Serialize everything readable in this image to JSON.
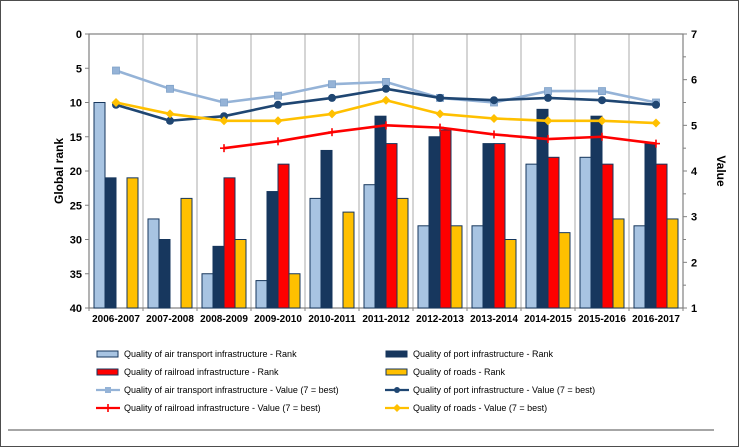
{
  "figure": {
    "background": "#ffffff",
    "border_color": "#4d4d4d",
    "gridline_color": "#ababab",
    "axis_line_color": "#808080",
    "bar_border_color": "#16365c"
  },
  "chart_data": {
    "type": "combo-bar-line",
    "title": "",
    "categories": [
      "2006-2007",
      "2007-2008",
      "2008-2009",
      "2009-2010",
      "2010-2011",
      "2011-2012",
      "2012-2013",
      "2013-2014",
      "2014-2015",
      "2015-2016",
      "2016-2017"
    ],
    "axes": {
      "left": {
        "label": "Global rank",
        "min": 0,
        "max": 40,
        "step": 5,
        "inverted": true,
        "ticks": [
          0,
          5,
          10,
          15,
          20,
          25,
          30,
          35,
          40
        ]
      },
      "right": {
        "label": "Value",
        "min": 1,
        "max": 7,
        "step": 1,
        "ticks": [
          7,
          6,
          5,
          4,
          3,
          2,
          1
        ],
        "minor_step": 0.5
      }
    },
    "gridlines": "vertical",
    "legend_position": "bottom",
    "bar_series": [
      {
        "name": "Quality of air transport infrastructure - Rank",
        "axis": "left",
        "color": "#a8c4e2",
        "values": [
          10,
          27,
          35,
          36,
          24,
          22,
          28,
          28,
          19,
          18,
          28
        ]
      },
      {
        "name": "Quality of port infrastructure - Rank",
        "axis": "left",
        "color": "#17375e",
        "values": [
          21,
          30,
          31,
          23,
          17,
          12,
          15,
          16,
          11,
          12,
          16
        ]
      },
      {
        "name": "Quality of railroad infrastructure - Rank",
        "axis": "left",
        "color": "#fe0000",
        "values": [
          null,
          null,
          21,
          19,
          null,
          16,
          14,
          16,
          18,
          19,
          19
        ]
      },
      {
        "name": "Quality of roads - Rank",
        "axis": "left",
        "color": "#ffc000",
        "values": [
          21,
          24,
          30,
          35,
          26,
          24,
          28,
          30,
          29,
          27,
          27
        ]
      }
    ],
    "line_series": [
      {
        "name": "Quality of air transport infrastructure - Value (7 = best)",
        "axis": "right",
        "color": "#95b3d7",
        "marker": "square",
        "values": [
          6.2,
          5.8,
          5.5,
          5.65,
          5.9,
          5.95,
          5.6,
          5.5,
          5.75,
          5.75,
          5.5
        ]
      },
      {
        "name": "Quality of port infrastructure - Value (7 = best)",
        "axis": "right",
        "color": "#1f4672",
        "marker": "circle",
        "values": [
          5.45,
          5.1,
          5.2,
          5.45,
          5.6,
          5.8,
          5.6,
          5.55,
          5.6,
          5.55,
          5.45
        ]
      },
      {
        "name": "Quality of railroad infrastructure - Value (7 = best)",
        "axis": "right",
        "color": "#fe0000",
        "marker": "plus",
        "values": [
          null,
          null,
          4.5,
          4.65,
          4.85,
          5.0,
          4.95,
          4.8,
          4.7,
          4.75,
          4.6
        ]
      },
      {
        "name": "Quality of roads - Value (7 = best)",
        "axis": "right",
        "color": "#ffc000",
        "marker": "diamond",
        "values": [
          5.5,
          5.25,
          5.1,
          5.1,
          5.25,
          5.55,
          5.25,
          5.15,
          5.1,
          5.1,
          5.05
        ]
      }
    ],
    "legend": [
      {
        "label": "Quality of air transport infrastructure - Rank",
        "swatch": "bar",
        "color": "#a8c4e2"
      },
      {
        "label": "Quality of port infrastructure - Rank",
        "swatch": "bar",
        "color": "#17375e"
      },
      {
        "label": "Quality of railroad infrastructure - Rank",
        "swatch": "bar",
        "color": "#fe0000"
      },
      {
        "label": "Quality of roads - Rank",
        "swatch": "bar",
        "color": "#ffc000"
      },
      {
        "label": "Quality of air transport infrastructure - Value (7 = best)",
        "swatch": "line",
        "color": "#95b3d7",
        "marker": "square"
      },
      {
        "label": "Quality of port infrastructure - Value (7 = best)",
        "swatch": "line",
        "color": "#1f4672",
        "marker": "circle"
      },
      {
        "label": "Quality of railroad infrastructure - Value (7 = best)",
        "swatch": "line",
        "color": "#fe0000",
        "marker": "plus"
      },
      {
        "label": "Quality of roads - Value (7 = best)",
        "swatch": "line",
        "color": "#ffc000",
        "marker": "diamond"
      }
    ]
  }
}
